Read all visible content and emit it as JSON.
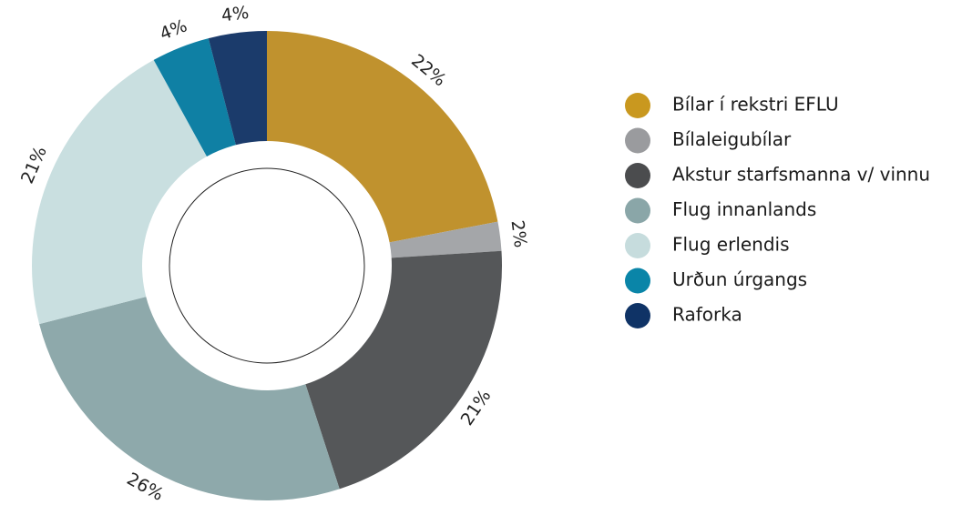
{
  "chart_data": {
    "type": "pie",
    "donut": true,
    "categories": [
      "Bílar í rekstri EFLU",
      "Bílaleigubílar",
      "Akstur starfsmanna v/ vinnu",
      "Flug innanlands",
      "Flug erlendis",
      "Urðun úrgangs",
      "Raforka"
    ],
    "values": [
      22,
      2,
      21,
      26,
      21,
      4,
      4
    ],
    "value_labels": [
      "22%",
      "2%",
      "21%",
      "26%",
      "21%",
      "4%",
      "4%"
    ],
    "colors": [
      "#c0922e",
      "#a4a6a9",
      "#555759",
      "#8ea9ab",
      "#c9dfe0",
      "#0f80a4",
      "#1b3b6b"
    ],
    "legend_colors": [
      "#c9981f",
      "#9a9b9e",
      "#4b4c4e",
      "#8aa6a8",
      "#c6dcdd",
      "#0a85a8",
      "#0f3366"
    ]
  }
}
